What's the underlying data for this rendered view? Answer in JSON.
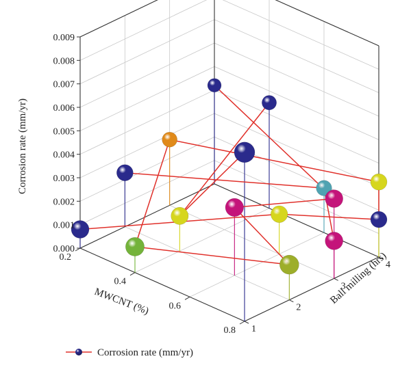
{
  "chart_data": {
    "type": "scatter3d",
    "zlabel": "Corrosion rate (mm/yr)",
    "xlabel": "MWCNT (%)",
    "ylabel": "Ball milling (hrs)",
    "x_ticks": [
      "0.2",
      "0.4",
      "0.6",
      "0.8"
    ],
    "y_ticks": [
      "1",
      "2",
      "3",
      "4"
    ],
    "z_ticks": [
      "0.000",
      "0.001",
      "0.002",
      "0.003",
      "0.004",
      "0.005",
      "0.006",
      "0.007",
      "0.008",
      "0.009"
    ],
    "xlim": [
      0.2,
      0.8
    ],
    "ylim": [
      1,
      4
    ],
    "zlim": [
      0,
      0.009
    ],
    "grid": true,
    "legend_position": "bottom-left",
    "series": [
      {
        "name": "Corrosion rate (mm/yr)",
        "line_color": "#e0302a",
        "points": [
          {
            "id": "p1",
            "x": 0.2,
            "y": 1,
            "z": 0.0008,
            "color": "#2a2a8c"
          },
          {
            "id": "p2",
            "x": 0.8,
            "y": 4,
            "z": 0.0016,
            "color": "#2a2a8c"
          },
          {
            "id": "p3",
            "x": 0.2,
            "y": 2,
            "z": 0.0023,
            "color": "#2a2a8c"
          },
          {
            "id": "p4",
            "x": 0.6,
            "y": 4,
            "z": 0.0019,
            "color": "#4fa3b2"
          },
          {
            "id": "p5",
            "x": 0.2,
            "y": 3,
            "z": 0.0028,
            "color": "#e08a1a"
          },
          {
            "id": "p6",
            "x": 0.4,
            "y": 2,
            "z": 0.0015,
            "color": "#d6d61e"
          },
          {
            "id": "p7",
            "x": 0.6,
            "y": 3,
            "z": 0.0017,
            "color": "#d6d61e"
          },
          {
            "id": "p8",
            "x": 0.4,
            "y": 1,
            "z": 0.0011,
            "color": "#74b33a"
          },
          {
            "id": "p9",
            "x": 0.8,
            "y": 2,
            "z": 0.0015,
            "color": "#9dae2a"
          },
          {
            "id": "p10",
            "x": 0.8,
            "y": 3,
            "z": 0.0016,
            "color": "#c4147a"
          },
          {
            "id": "p11",
            "x": 0.8,
            "y": 1,
            "z": 0.0072,
            "color": "#2a2a8c"
          },
          {
            "id": "p12",
            "x": 0.4,
            "y": 4,
            "z": 0.0045,
            "color": "#2a2a8c"
          },
          {
            "id": "p13",
            "x": 0.2,
            "y": 4,
            "z": 0.0042,
            "color": "#2a2a8c"
          },
          {
            "id": "p14",
            "x": 0.6,
            "y": 2,
            "z": 0.0029,
            "color": "#c4147a"
          },
          {
            "id": "p15",
            "x": 0.8,
            "y": 4,
            "z": 0.0032,
            "color": "#d6d61e"
          },
          {
            "id": "p16",
            "x": 0.8,
            "y": 3,
            "z": 0.0034,
            "color": "#c4147a"
          }
        ],
        "connections": [
          [
            "p1",
            "p7"
          ],
          [
            "p7",
            "p2"
          ],
          [
            "p3",
            "p4"
          ],
          [
            "p4",
            "p10"
          ],
          [
            "p5",
            "p15"
          ],
          [
            "p5",
            "p8"
          ],
          [
            "p8",
            "p9"
          ],
          [
            "p13",
            "p16"
          ],
          [
            "p12",
            "p6"
          ],
          [
            "p6",
            "p11"
          ],
          [
            "p14",
            "p9"
          ],
          [
            "p14",
            "p16"
          ],
          [
            "p15",
            "p2"
          ]
        ]
      }
    ]
  }
}
